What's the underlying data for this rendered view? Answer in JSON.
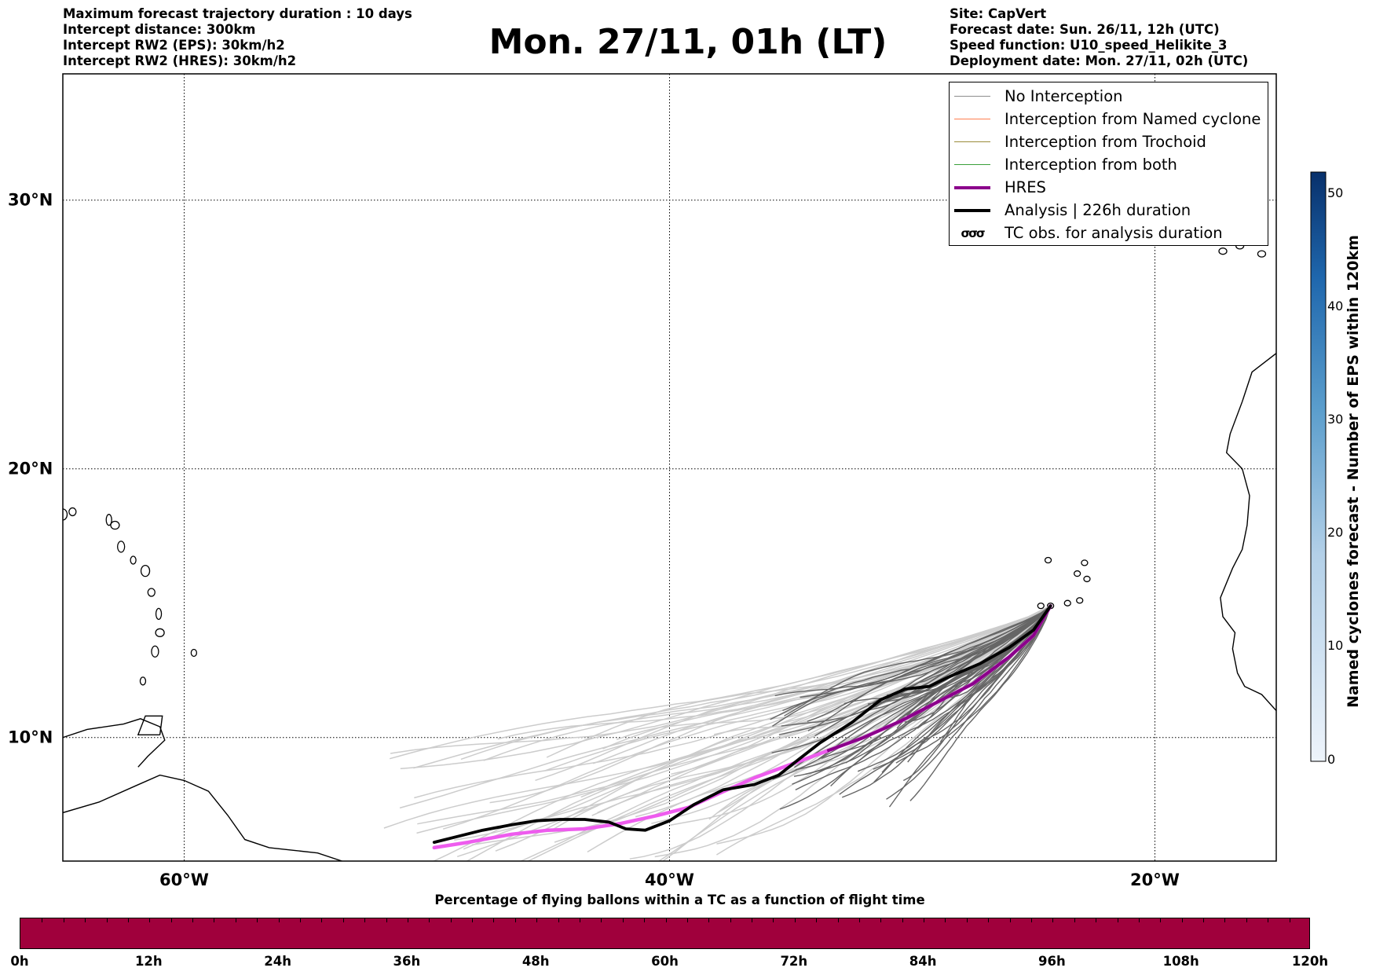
{
  "header": {
    "left_lines": [
      "Maximum forecast trajectory duration : 10 days",
      "Intercept distance: 300km",
      "Intercept RW2 (EPS):  30km/h2",
      "Intercept RW2 (HRES): 30km/h2"
    ],
    "right_lines": [
      "Site: CapVert",
      "Forecast date: Sun. 26/11, 12h (UTC)",
      "Speed function: U10_speed_Helikite_3",
      "Deployment date: Mon. 27/11, 02h (UTC)"
    ],
    "title": "Mon. 27/11, 01h (LT)"
  },
  "map": {
    "lon_range": [
      -65,
      -15
    ],
    "lat_range": [
      5.4,
      34.7
    ],
    "lon_ticks": [
      {
        "v": -60,
        "label": "60°W"
      },
      {
        "v": -40,
        "label": "40°W"
      },
      {
        "v": -20,
        "label": "20°W"
      }
    ],
    "lat_ticks": [
      {
        "v": 30,
        "label": "30°N"
      },
      {
        "v": 20,
        "label": "20°N"
      },
      {
        "v": 10,
        "label": "10°N"
      }
    ],
    "grid": true,
    "site": {
      "lon": -24.3,
      "lat": 14.9
    },
    "hres_track": [
      [
        -49.7,
        5.9
      ],
      [
        -48.3,
        6.1
      ],
      [
        -46.5,
        6.4
      ],
      [
        -45.0,
        6.55
      ],
      [
        -43.5,
        6.6
      ],
      [
        -42.0,
        6.8
      ],
      [
        -40.5,
        7.1
      ],
      [
        -39.2,
        7.4
      ],
      [
        -38.0,
        7.9
      ],
      [
        -36.5,
        8.5
      ],
      [
        -35.0,
        9.0
      ],
      [
        -33.5,
        9.5
      ],
      [
        -32.0,
        10.0
      ],
      [
        -30.5,
        10.6
      ],
      [
        -29.0,
        11.3
      ],
      [
        -27.5,
        12.0
      ],
      [
        -26.0,
        13.0
      ],
      [
        -25.0,
        13.8
      ],
      [
        -24.3,
        14.9
      ]
    ],
    "analysis_track": [
      [
        -49.7,
        6.1
      ],
      [
        -48.8,
        6.3
      ],
      [
        -47.7,
        6.55
      ],
      [
        -46.5,
        6.75
      ],
      [
        -45.5,
        6.9
      ],
      [
        -44.5,
        6.95
      ],
      [
        -43.5,
        6.95
      ],
      [
        -42.5,
        6.85
      ],
      [
        -41.8,
        6.6
      ],
      [
        -41.0,
        6.55
      ],
      [
        -40.0,
        6.9
      ],
      [
        -39.0,
        7.5
      ],
      [
        -37.8,
        8.05
      ],
      [
        -36.5,
        8.25
      ],
      [
        -35.5,
        8.6
      ],
      [
        -34.8,
        9.1
      ],
      [
        -33.8,
        9.8
      ],
      [
        -32.5,
        10.55
      ],
      [
        -31.3,
        11.4
      ],
      [
        -30.3,
        11.8
      ],
      [
        -29.3,
        11.9
      ],
      [
        -28.5,
        12.25
      ],
      [
        -27.2,
        12.75
      ],
      [
        -26.0,
        13.35
      ],
      [
        -25.0,
        14.0
      ],
      [
        -24.3,
        14.9
      ]
    ],
    "coastline_color": "#000000"
  },
  "legend": {
    "items": [
      {
        "label": "No Interception",
        "color": "#8c8c8c",
        "width": 1.5
      },
      {
        "label": "Interception from Named cyclone",
        "color": "#ff7f50",
        "width": 1.5
      },
      {
        "label": "Interception from Trochoid",
        "color": "#9b8c3a",
        "width": 1.5
      },
      {
        "label": "Interception from both",
        "color": "#3aa03a",
        "width": 1.5
      },
      {
        "label": "HRES",
        "color": "#8b008b",
        "width": 4
      },
      {
        "label": "Analysis | 226h duration",
        "color": "#000000",
        "width": 4
      }
    ],
    "tc_obs_label": "TC obs. for analysis duration",
    "tc_obs_symbol": "σσσ"
  },
  "colorbar": {
    "label": "Named cyclones forecast - Number of EPS within 120km",
    "ticks": [
      "0",
      "10",
      "20",
      "30",
      "40",
      "50"
    ],
    "range": [
      0,
      52
    ],
    "color_low": "#eef4fb",
    "color_high": "#08306b"
  },
  "flight_bar": {
    "title": "Percentage of flying ballons within a TC as a function of flight time",
    "ticks": [
      "0h",
      "12h",
      "24h",
      "36h",
      "48h",
      "60h",
      "72h",
      "84h",
      "96h",
      "108h",
      "120h"
    ],
    "fill_color": "#a0003c"
  },
  "colors": {
    "ensemble_dark": "#666666",
    "ensemble_light": "#cccccc",
    "hres": "#ee5cee",
    "hres_end": "#8b008b",
    "analysis": "#000000"
  }
}
